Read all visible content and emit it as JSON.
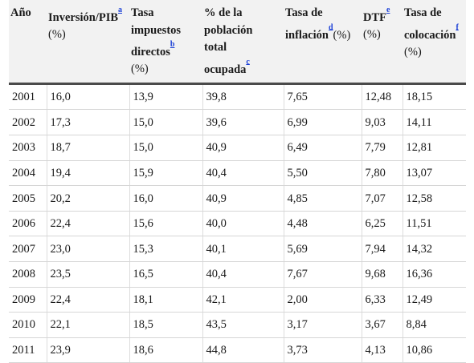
{
  "table": {
    "headers": [
      {
        "lines": [
          "Año"
        ],
        "note": "",
        "after_note": "",
        "unit": ""
      },
      {
        "lines": [
          "Inversión/PIB"
        ],
        "note": "a",
        "after_note": "",
        "unit": "(%)"
      },
      {
        "lines": [
          "Tasa",
          "impuestos",
          "directos"
        ],
        "note": "b",
        "after_note": "",
        "unit": "(%)"
      },
      {
        "lines": [
          "% de la",
          "población",
          "total",
          "ocupada"
        ],
        "note": "c",
        "after_note": "",
        "unit": ""
      },
      {
        "lines": [
          "Tasa de",
          "inflación"
        ],
        "note": "d",
        "after_note": "(%)",
        "unit": ""
      },
      {
        "lines": [
          "DTF"
        ],
        "note": "e",
        "after_note": "",
        "unit": "(%)"
      },
      {
        "lines": [
          "Tasa de",
          "colocación"
        ],
        "note": "f",
        "after_note": "",
        "unit": "(%)"
      }
    ],
    "rows": [
      [
        "2001",
        "16,0",
        "13,9",
        "39,8",
        "7,65",
        "12,48",
        "18,15"
      ],
      [
        "2002",
        "17,3",
        "15,0",
        "39,6",
        "6,99",
        "9,03",
        "14,11"
      ],
      [
        "2003",
        "18,7",
        "15,0",
        "40,9",
        "6,49",
        "7,79",
        "12,81"
      ],
      [
        "2004",
        "19,4",
        "15,9",
        "40,4",
        "5,50",
        "7,80",
        "13,07"
      ],
      [
        "2005",
        "20,2",
        "16,0",
        "40,9",
        "4,85",
        "7,07",
        "12,58"
      ],
      [
        "2006",
        "22,4",
        "15,6",
        "40,0",
        "4,48",
        "6,25",
        "11,51"
      ],
      [
        "2007",
        "23,0",
        "15,3",
        "40,1",
        "5,69",
        "7,94",
        "14,32"
      ],
      [
        "2008",
        "23,5",
        "16,5",
        "40,4",
        "7,67",
        "9,68",
        "16,36"
      ],
      [
        "2009",
        "22,4",
        "18,1",
        "42,1",
        "2,00",
        "6,33",
        "12,49"
      ],
      [
        "2010",
        "22,1",
        "18,5",
        "43,5",
        "3,17",
        "3,67",
        "8,84"
      ],
      [
        "2011",
        "23,9",
        "18,6",
        "44,8",
        "3,73",
        "4,13",
        "10,86"
      ]
    ]
  }
}
